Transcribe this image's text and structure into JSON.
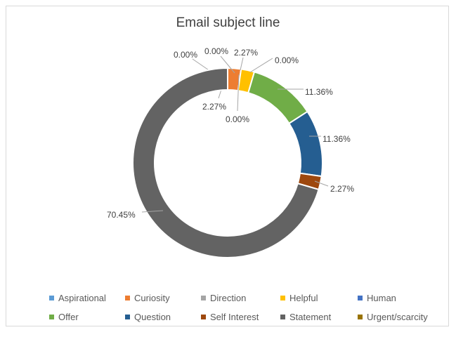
{
  "chart_data": {
    "type": "pie",
    "donut": true,
    "title": "Email subject line",
    "categories": [
      "Aspirational",
      "Curiosity",
      "Direction",
      "Helpful",
      "Human",
      "Offer",
      "Question",
      "Self Interest",
      "Statement",
      "Urgent/scarcity"
    ],
    "values": [
      0.0,
      2.27,
      0.0,
      2.27,
      0.0,
      11.36,
      11.36,
      2.27,
      70.45,
      0.0
    ],
    "labels": [
      "0.00%",
      "2.27%",
      "0.00%",
      "2.27%",
      "0.00%",
      "11.36%",
      "11.36%",
      "2.27%",
      "70.45%",
      "0.00%"
    ],
    "colors": [
      "#5b9bd5",
      "#ed7d31",
      "#a5a5a5",
      "#ffc000",
      "#4472c4",
      "#70ad47",
      "#255e91",
      "#9e480e",
      "#636363",
      "#997300"
    ],
    "legend_position": "bottom"
  }
}
